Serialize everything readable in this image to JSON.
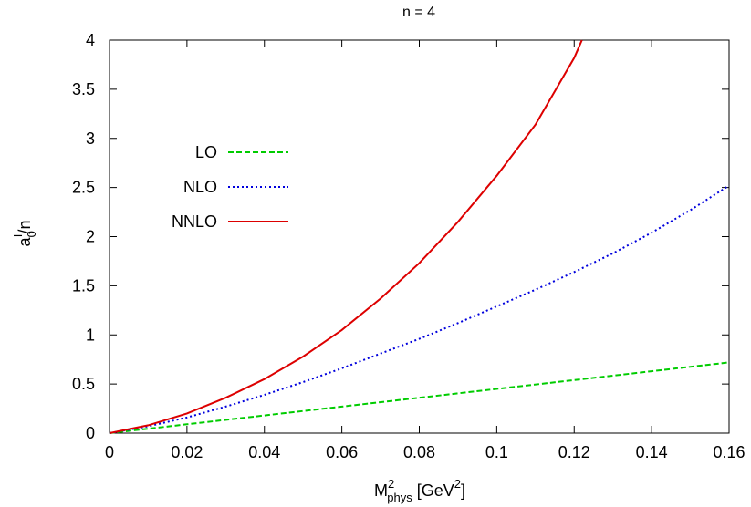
{
  "chart_data": {
    "type": "line",
    "title": "n = 4",
    "xlabel": {
      "main": "M",
      "sup": "2",
      "sub": "phys",
      "unit_open": " [GeV",
      "unit_sup": "2",
      "unit_close": "]"
    },
    "ylabel": {
      "main": "a",
      "sub": "0",
      "sup": "I",
      "rest": "/n"
    },
    "xlim": [
      0,
      0.16
    ],
    "ylim": [
      0,
      4
    ],
    "xticks": [
      "0",
      "0.02",
      "0.04",
      "0.06",
      "0.08",
      "0.1",
      "0.12",
      "0.14",
      "0.16"
    ],
    "yticks": [
      "0",
      "0.5",
      "1",
      "1.5",
      "2",
      "2.5",
      "3",
      "3.5",
      "4"
    ],
    "grid": false,
    "legend_position": "upper-left",
    "series": [
      {
        "name": "LO",
        "color": "#00cc00",
        "dash": "dashed",
        "x": [
          0,
          0.02,
          0.04,
          0.06,
          0.08,
          0.1,
          0.12,
          0.14,
          0.16
        ],
        "y": [
          0,
          0.09,
          0.18,
          0.27,
          0.36,
          0.45,
          0.54,
          0.63,
          0.72
        ]
      },
      {
        "name": "NLO",
        "color": "#0000dd",
        "dash": "dotted",
        "x": [
          0,
          0.01,
          0.02,
          0.03,
          0.04,
          0.05,
          0.06,
          0.07,
          0.08,
          0.09,
          0.1,
          0.11,
          0.12,
          0.13,
          0.14,
          0.15,
          0.16
        ],
        "y": [
          0,
          0.07,
          0.16,
          0.27,
          0.39,
          0.52,
          0.66,
          0.81,
          0.96,
          1.12,
          1.29,
          1.46,
          1.64,
          1.83,
          2.04,
          2.27,
          2.52
        ]
      },
      {
        "name": "NNLO",
        "color": "#dd0000",
        "dash": "solid",
        "x": [
          0,
          0.01,
          0.02,
          0.03,
          0.04,
          0.05,
          0.06,
          0.07,
          0.08,
          0.09,
          0.1,
          0.11,
          0.12,
          0.122
        ],
        "y": [
          0,
          0.08,
          0.2,
          0.36,
          0.55,
          0.78,
          1.05,
          1.37,
          1.73,
          2.15,
          2.62,
          3.14,
          3.82,
          4.0
        ]
      }
    ]
  }
}
